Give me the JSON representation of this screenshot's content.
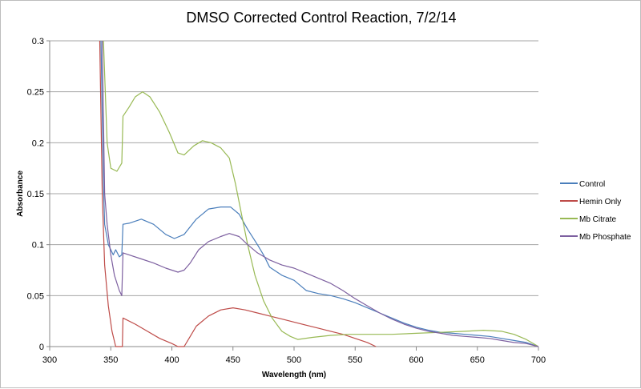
{
  "chart_data": {
    "type": "line",
    "title": "DMSO Corrected Control Reaction, 7/2/14",
    "xlabel": "Wavelength (nm)",
    "ylabel": "Absorbance",
    "xlim": [
      300,
      700
    ],
    "ylim": [
      0,
      0.3
    ],
    "xticks": [
      "300",
      "350",
      "400",
      "450",
      "500",
      "550",
      "600",
      "650",
      "700"
    ],
    "yticks": [
      "0",
      "0.05",
      "0.1",
      "0.15",
      "0.2",
      "0.25",
      "0.3"
    ],
    "grid": "horizontal",
    "legend_position": "right",
    "series": [
      {
        "name": "Control",
        "color": "#4a7ebb",
        "points": [
          [
            342,
            0.3
          ],
          [
            344,
            0.16
          ],
          [
            345,
            0.12
          ],
          [
            348,
            0.1
          ],
          [
            350,
            0.095
          ],
          [
            352,
            0.09
          ],
          [
            354,
            0.095
          ],
          [
            357,
            0.088
          ],
          [
            359,
            0.09
          ],
          [
            360,
            0.12
          ],
          [
            365,
            0.121
          ],
          [
            375,
            0.125
          ],
          [
            385,
            0.12
          ],
          [
            395,
            0.11
          ],
          [
            402,
            0.106
          ],
          [
            410,
            0.11
          ],
          [
            420,
            0.125
          ],
          [
            430,
            0.135
          ],
          [
            440,
            0.137
          ],
          [
            448,
            0.137
          ],
          [
            455,
            0.13
          ],
          [
            462,
            0.115
          ],
          [
            470,
            0.1
          ],
          [
            475,
            0.09
          ],
          [
            480,
            0.078
          ],
          [
            490,
            0.07
          ],
          [
            500,
            0.065
          ],
          [
            505,
            0.06
          ],
          [
            510,
            0.055
          ],
          [
            520,
            0.052
          ],
          [
            530,
            0.05
          ],
          [
            540,
            0.047
          ],
          [
            550,
            0.043
          ],
          [
            560,
            0.038
          ],
          [
            570,
            0.033
          ],
          [
            580,
            0.028
          ],
          [
            590,
            0.023
          ],
          [
            600,
            0.019
          ],
          [
            610,
            0.016
          ],
          [
            620,
            0.014
          ],
          [
            630,
            0.013
          ],
          [
            640,
            0.012
          ],
          [
            650,
            0.011
          ],
          [
            660,
            0.01
          ],
          [
            670,
            0.008
          ],
          [
            680,
            0.006
          ],
          [
            690,
            0.004
          ],
          [
            700,
            0.0
          ]
        ]
      },
      {
        "name": "Hemin Only",
        "color": "#be4b48",
        "points": [
          [
            341,
            0.3
          ],
          [
            343,
            0.15
          ],
          [
            345,
            0.08
          ],
          [
            348,
            0.04
          ],
          [
            351,
            0.015
          ],
          [
            354,
            0.0
          ],
          [
            359.5,
            0.0
          ],
          [
            360,
            0.028
          ],
          [
            370,
            0.022
          ],
          [
            380,
            0.015
          ],
          [
            390,
            0.008
          ],
          [
            400,
            0.003
          ],
          [
            405,
            0.0
          ],
          [
            410,
            0.0
          ],
          [
            415,
            0.01
          ],
          [
            420,
            0.02
          ],
          [
            430,
            0.03
          ],
          [
            440,
            0.036
          ],
          [
            450,
            0.038
          ],
          [
            460,
            0.036
          ],
          [
            470,
            0.033
          ],
          [
            480,
            0.03
          ],
          [
            490,
            0.027
          ],
          [
            500,
            0.024
          ],
          [
            510,
            0.021
          ],
          [
            520,
            0.018
          ],
          [
            530,
            0.015
          ],
          [
            540,
            0.012
          ],
          [
            550,
            0.008
          ],
          [
            560,
            0.004
          ],
          [
            567,
            0.0
          ]
        ]
      },
      {
        "name": "Mb Citrate",
        "color": "#98b954",
        "points": [
          [
            344,
            0.3
          ],
          [
            347,
            0.2
          ],
          [
            350,
            0.175
          ],
          [
            355,
            0.172
          ],
          [
            359,
            0.18
          ],
          [
            360,
            0.226
          ],
          [
            365,
            0.235
          ],
          [
            370,
            0.245
          ],
          [
            376,
            0.25
          ],
          [
            382,
            0.245
          ],
          [
            390,
            0.23
          ],
          [
            398,
            0.21
          ],
          [
            405,
            0.19
          ],
          [
            410,
            0.188
          ],
          [
            418,
            0.197
          ],
          [
            425,
            0.202
          ],
          [
            432,
            0.2
          ],
          [
            440,
            0.195
          ],
          [
            447,
            0.185
          ],
          [
            452,
            0.16
          ],
          [
            457,
            0.13
          ],
          [
            462,
            0.1
          ],
          [
            468,
            0.07
          ],
          [
            475,
            0.045
          ],
          [
            482,
            0.028
          ],
          [
            490,
            0.015
          ],
          [
            497,
            0.01
          ],
          [
            503,
            0.007
          ],
          [
            515,
            0.009
          ],
          [
            530,
            0.011
          ],
          [
            545,
            0.012
          ],
          [
            560,
            0.012
          ],
          [
            580,
            0.012
          ],
          [
            600,
            0.013
          ],
          [
            620,
            0.014
          ],
          [
            640,
            0.015
          ],
          [
            655,
            0.016
          ],
          [
            670,
            0.015
          ],
          [
            680,
            0.012
          ],
          [
            690,
            0.007
          ],
          [
            700,
            0.0
          ]
        ]
      },
      {
        "name": "Mb Phosphate",
        "color": "#7d60a0",
        "points": [
          [
            343,
            0.3
          ],
          [
            345,
            0.15
          ],
          [
            347,
            0.12
          ],
          [
            350,
            0.09
          ],
          [
            353,
            0.07
          ],
          [
            357,
            0.055
          ],
          [
            359,
            0.05
          ],
          [
            360,
            0.092
          ],
          [
            365,
            0.09
          ],
          [
            375,
            0.086
          ],
          [
            385,
            0.082
          ],
          [
            395,
            0.077
          ],
          [
            405,
            0.073
          ],
          [
            410,
            0.075
          ],
          [
            415,
            0.082
          ],
          [
            422,
            0.095
          ],
          [
            430,
            0.103
          ],
          [
            440,
            0.108
          ],
          [
            447,
            0.111
          ],
          [
            455,
            0.108
          ],
          [
            462,
            0.1
          ],
          [
            470,
            0.092
          ],
          [
            480,
            0.085
          ],
          [
            490,
            0.08
          ],
          [
            500,
            0.077
          ],
          [
            510,
            0.072
          ],
          [
            520,
            0.067
          ],
          [
            530,
            0.062
          ],
          [
            540,
            0.055
          ],
          [
            550,
            0.047
          ],
          [
            560,
            0.04
          ],
          [
            570,
            0.033
          ],
          [
            580,
            0.027
          ],
          [
            590,
            0.022
          ],
          [
            600,
            0.018
          ],
          [
            610,
            0.015
          ],
          [
            620,
            0.013
          ],
          [
            630,
            0.011
          ],
          [
            640,
            0.01
          ],
          [
            650,
            0.009
          ],
          [
            660,
            0.008
          ],
          [
            670,
            0.006
          ],
          [
            680,
            0.004
          ],
          [
            690,
            0.003
          ],
          [
            700,
            0.0
          ]
        ]
      }
    ]
  }
}
